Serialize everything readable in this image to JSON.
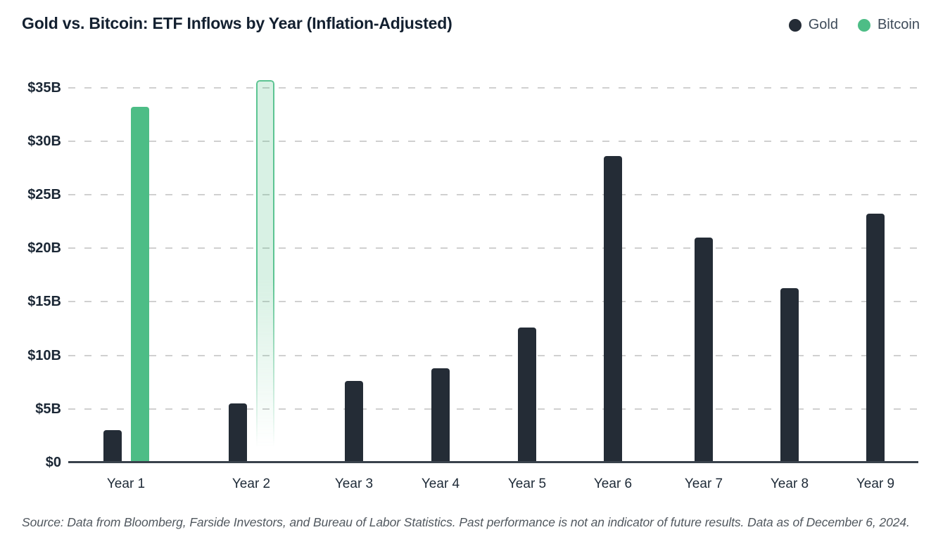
{
  "title": "Gold vs. Bitcoin: ETF Inflows by Year (Inflation-Adjusted)",
  "source_note": "Source: Data from Bloomberg, Farside Investors, and Bureau of Labor Statistics. Past performance is not an indicator of future results. Data as of December 6, 2024.",
  "chart_data": {
    "type": "bar",
    "title": "Gold vs. Bitcoin: ETF Inflows by Year (Inflation-Adjusted)",
    "categories": [
      "Year 1",
      "Year 2",
      "Year 3",
      "Year 4",
      "Year 5",
      "Year 6",
      "Year 7",
      "Year 8",
      "Year 9"
    ],
    "series": [
      {
        "name": "Gold",
        "color": "#242c36",
        "values": [
          3.0,
          5.5,
          7.6,
          8.8,
          12.6,
          28.6,
          21.0,
          16.3,
          23.2
        ]
      },
      {
        "name": "Bitcoin",
        "color": "#4dbd86",
        "values": [
          33.2,
          35.7,
          null,
          null,
          null,
          null,
          null,
          null,
          null
        ],
        "projected_indices": [
          1
        ]
      }
    ],
    "y_ticks": [
      "$0",
      "$5B",
      "$10B",
      "$15B",
      "$20B",
      "$25B",
      "$30B",
      "$35B"
    ],
    "ylabel": "",
    "xlabel": "",
    "ylim": [
      0,
      36
    ],
    "unit": "USD billions",
    "grid": "horizontal-dashed",
    "legend_position": "top-right"
  }
}
